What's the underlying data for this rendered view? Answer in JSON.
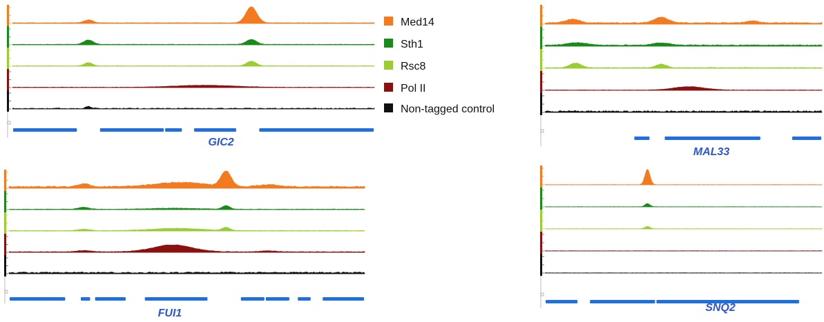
{
  "colors": {
    "med14": "#f47a20",
    "sth1": "#1a8a1a",
    "rsc8": "#9acd32",
    "pol2": "#8b1010",
    "control": "#111111",
    "gene": "#1f6fe0",
    "gene_label": "#2a55dd"
  },
  "legend": {
    "placement": "center-top",
    "entries": [
      {
        "label": "Med14",
        "color": "#f47a20"
      },
      {
        "label": "Sth1",
        "color": "#1a8a1a"
      },
      {
        "label": "Rsc8",
        "color": "#9acd32"
      },
      {
        "label": "Pol II",
        "color": "#8b1010"
      },
      {
        "label": "Non-tagged control",
        "color": "#111111"
      }
    ]
  },
  "chart_data": [
    {
      "type": "area",
      "gene": "GIC2",
      "x_range": [
        0,
        100
      ],
      "series": [
        {
          "color": "#f47a20",
          "baseline": 0.2,
          "noise": 0.15,
          "peaks": [
            {
              "x": 21,
              "h": 1.2,
              "w": 1.2
            },
            {
              "x": 66,
              "h": 6.5,
              "w": 1.5
            }
          ]
        },
        {
          "color": "#1a8a1a",
          "baseline": 0.15,
          "noise": 0.12,
          "peaks": [
            {
              "x": 21,
              "h": 1.8,
              "w": 1.3
            },
            {
              "x": 66,
              "h": 2.0,
              "w": 1.4
            }
          ]
        },
        {
          "color": "#9acd32",
          "baseline": 0.1,
          "noise": 0.1,
          "peaks": [
            {
              "x": 21,
              "h": 1.3,
              "w": 1.1
            },
            {
              "x": 66,
              "h": 1.9,
              "w": 1.3
            }
          ]
        },
        {
          "color": "#8b1010",
          "baseline": 0.1,
          "noise": 0.12,
          "peaks": [
            {
              "x": 53,
              "h": 0.8,
              "w": 8.0
            }
          ]
        },
        {
          "color": "#111111",
          "baseline": 0.05,
          "noise": 0.35,
          "peaks": [
            {
              "x": 21,
              "h": 0.8,
              "w": 0.8
            }
          ]
        }
      ],
      "genes": [
        {
          "start": 0,
          "end": 18
        },
        {
          "start": 24,
          "end": 42
        },
        {
          "start": 42,
          "end": 47
        },
        {
          "start": 50,
          "end": 62
        },
        {
          "start": 68,
          "end": 100
        }
      ]
    },
    {
      "type": "area",
      "gene": "MAL33",
      "x_range": [
        0,
        100
      ],
      "series": [
        {
          "color": "#f47a20",
          "baseline": 0.35,
          "noise": 0.35,
          "peaks": [
            {
              "x": 10,
              "h": 1.5,
              "w": 2.5
            },
            {
              "x": 42,
              "h": 2.3,
              "w": 2.5
            },
            {
              "x": 75,
              "h": 0.8,
              "w": 2.0
            }
          ]
        },
        {
          "color": "#1a8a1a",
          "baseline": 0.3,
          "noise": 0.3,
          "peaks": [
            {
              "x": 12,
              "h": 1.0,
              "w": 3.5
            },
            {
              "x": 42,
              "h": 0.9,
              "w": 3.0
            }
          ]
        },
        {
          "color": "#9acd32",
          "baseline": 0.15,
          "noise": 0.2,
          "peaks": [
            {
              "x": 11,
              "h": 1.8,
              "w": 2.0
            },
            {
              "x": 42,
              "h": 1.4,
              "w": 1.8
            }
          ]
        },
        {
          "color": "#8b1010",
          "baseline": 0.1,
          "noise": 0.1,
          "peaks": [
            {
              "x": 52,
              "h": 1.3,
              "w": 5.5
            }
          ]
        },
        {
          "color": "#111111",
          "baseline": 0.2,
          "noise": 0.5,
          "peaks": []
        }
      ],
      "genes": [
        {
          "start": 32,
          "end": 38
        },
        {
          "start": 43,
          "end": 78
        },
        {
          "start": 89,
          "end": 100
        }
      ]
    },
    {
      "type": "area",
      "gene": "FUI1",
      "x_range": [
        0,
        100
      ],
      "series": [
        {
          "color": "#f47a20",
          "baseline": 0.5,
          "noise": 0.35,
          "peaks": [
            {
              "x": 21,
              "h": 1.2,
              "w": 1.5
            },
            {
              "x": 48,
              "h": 1.7,
              "w": 7.0
            },
            {
              "x": 61,
              "h": 6.2,
              "w": 1.4
            },
            {
              "x": 73,
              "h": 0.8,
              "w": 3.0
            }
          ]
        },
        {
          "color": "#1a8a1a",
          "baseline": 0.1,
          "noise": 0.15,
          "peaks": [
            {
              "x": 21,
              "h": 0.8,
              "w": 1.5
            },
            {
              "x": 46,
              "h": 0.4,
              "w": 7.0
            },
            {
              "x": 61,
              "h": 1.5,
              "w": 1.0
            }
          ]
        },
        {
          "color": "#9acd32",
          "baseline": 0.1,
          "noise": 0.15,
          "peaks": [
            {
              "x": 21,
              "h": 0.6,
              "w": 1.5
            },
            {
              "x": 47,
              "h": 0.9,
              "w": 7.0
            },
            {
              "x": 61,
              "h": 1.3,
              "w": 1.0
            }
          ]
        },
        {
          "color": "#8b1010",
          "baseline": 0.15,
          "noise": 0.2,
          "peaks": [
            {
              "x": 46,
              "h": 2.8,
              "w": 5.5
            },
            {
              "x": 21,
              "h": 0.5,
              "w": 2.0
            },
            {
              "x": 73,
              "h": 0.4,
              "w": 2.5
            }
          ]
        },
        {
          "color": "#111111",
          "baseline": 0.25,
          "noise": 0.5,
          "peaks": []
        }
      ],
      "genes": [
        {
          "start": 0,
          "end": 16
        },
        {
          "start": 20,
          "end": 23
        },
        {
          "start": 24,
          "end": 33
        },
        {
          "start": 38,
          "end": 56
        },
        {
          "start": 65,
          "end": 72
        },
        {
          "start": 72,
          "end": 79
        },
        {
          "start": 81,
          "end": 85
        },
        {
          "start": 88,
          "end": 100
        }
      ]
    },
    {
      "type": "area",
      "gene": "SNQ2",
      "x_range": [
        0,
        100
      ],
      "series": [
        {
          "color": "#f47a20",
          "baseline": 0.05,
          "noise": 0.05,
          "peaks": [
            {
              "x": 37,
              "h": 6.0,
              "w": 0.9
            }
          ]
        },
        {
          "color": "#1a8a1a",
          "baseline": 0.05,
          "noise": 0.05,
          "peaks": [
            {
              "x": 37,
              "h": 1.2,
              "w": 0.9
            }
          ]
        },
        {
          "color": "#9acd32",
          "baseline": 0.05,
          "noise": 0.05,
          "peaks": [
            {
              "x": 37,
              "h": 0.9,
              "w": 0.9
            }
          ]
        },
        {
          "color": "#8b1010",
          "baseline": 0.05,
          "noise": 0.06,
          "peaks": []
        },
        {
          "color": "#111111",
          "baseline": 0.05,
          "noise": 0.06,
          "peaks": []
        }
      ],
      "genes": [
        {
          "start": 0,
          "end": 12
        },
        {
          "start": 16,
          "end": 40
        },
        {
          "start": 40,
          "end": 92
        }
      ]
    }
  ]
}
